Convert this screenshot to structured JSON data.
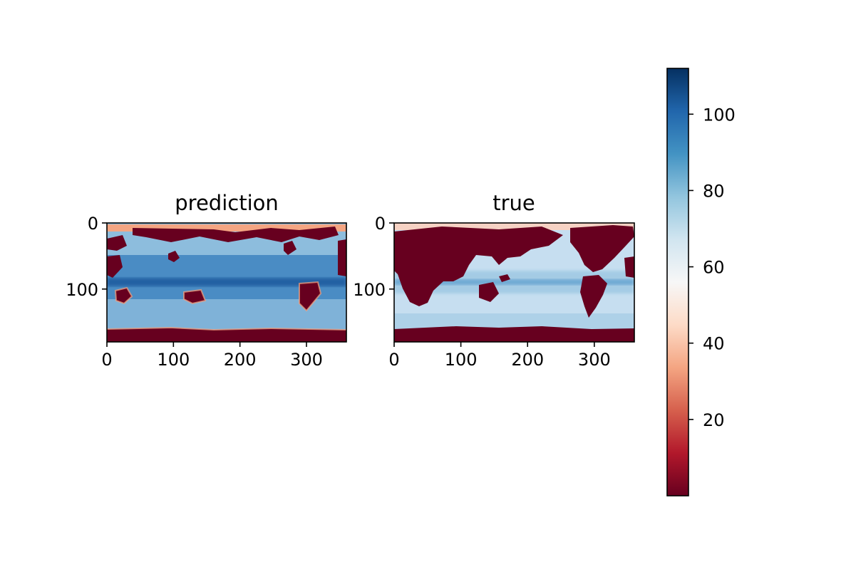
{
  "chart_data": [
    {
      "type": "heatmap",
      "title": "prediction",
      "x_ticks": [
        0,
        100,
        200,
        300
      ],
      "y_ticks": [
        0,
        100
      ],
      "xlim": [
        0,
        360
      ],
      "ylim": [
        180,
        0
      ],
      "colormap": "RdBu"
    },
    {
      "type": "heatmap",
      "title": "true",
      "x_ticks": [
        0,
        100,
        200,
        300
      ],
      "y_ticks": [
        0,
        100
      ],
      "xlim": [
        0,
        360
      ],
      "ylim": [
        180,
        0
      ],
      "colormap": "RdBu"
    }
  ],
  "colorbar": {
    "range": [
      0,
      112
    ],
    "ticks": [
      20,
      40,
      60,
      80,
      100
    ],
    "colors": [
      "#67001f",
      "#b2182b",
      "#d6604d",
      "#f4a582",
      "#fddbc7",
      "#f7f7f7",
      "#d1e5f0",
      "#92c5de",
      "#4393c3",
      "#2166ac",
      "#053061"
    ]
  },
  "colors": {
    "land": "#67001f",
    "ocean_pred": "#4a8cc4",
    "ocean_true": "#c6def0",
    "band_dark": "#1d5a9e"
  }
}
